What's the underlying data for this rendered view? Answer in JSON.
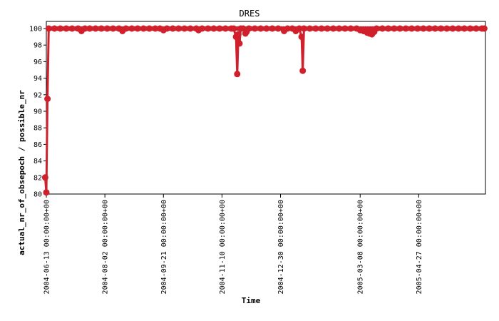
{
  "chart_data": {
    "type": "line",
    "title": "DRES",
    "xlabel": "Time",
    "ylabel": "actual_nr_of_obsepoch / possible_nr",
    "ylim": [
      80,
      100
    ],
    "xlim": [
      "2004-06-13",
      "2005-06-23"
    ],
    "y_ticks": [
      80,
      82,
      84,
      86,
      88,
      90,
      92,
      94,
      96,
      98,
      100
    ],
    "x_ticks": [
      "2004-06-13 00:00:00+00",
      "2004-08-02 00:00:00+00",
      "2004-09-21 00:00:00+00",
      "2004-11-10 00:00:00+00",
      "2004-12-30 00:00:00+00",
      "2005-03-08 00:00:00+00",
      "2005-04-27 00:00:00+00"
    ],
    "grid": false,
    "legend": false,
    "color": "#d0202c",
    "series": [
      {
        "points": [
          [
            "2004-06-12",
            82.0
          ],
          [
            "2004-06-13",
            80.2
          ],
          [
            "2004-06-14",
            91.5
          ],
          [
            "2004-06-15",
            100
          ],
          [
            "2004-06-20",
            100
          ],
          [
            "2004-06-25",
            100
          ],
          [
            "2004-06-30",
            100
          ],
          [
            "2004-07-05",
            100
          ],
          [
            "2004-07-10",
            100
          ],
          [
            "2004-07-13",
            99.7
          ],
          [
            "2004-07-16",
            100
          ],
          [
            "2004-07-20",
            100
          ],
          [
            "2004-07-25",
            100
          ],
          [
            "2004-07-30",
            100
          ],
          [
            "2004-08-04",
            100
          ],
          [
            "2004-08-09",
            100
          ],
          [
            "2004-08-14",
            100
          ],
          [
            "2004-08-17",
            99.7
          ],
          [
            "2004-08-20",
            100
          ],
          [
            "2004-08-25",
            100
          ],
          [
            "2004-08-30",
            100
          ],
          [
            "2004-09-04",
            100
          ],
          [
            "2004-09-09",
            100
          ],
          [
            "2004-09-14",
            100
          ],
          [
            "2004-09-18",
            100
          ],
          [
            "2004-09-21",
            99.8
          ],
          [
            "2004-09-24",
            100
          ],
          [
            "2004-09-29",
            100
          ],
          [
            "2004-10-04",
            100
          ],
          [
            "2004-10-09",
            100
          ],
          [
            "2004-10-14",
            100
          ],
          [
            "2004-10-19",
            100
          ],
          [
            "2004-10-21",
            99.8
          ],
          [
            "2004-10-24",
            100
          ],
          [
            "2004-10-29",
            100
          ],
          [
            "2004-11-03",
            100
          ],
          [
            "2004-11-08",
            100
          ],
          [
            "2004-11-13",
            100
          ],
          [
            "2004-11-18",
            100
          ],
          [
            "2004-11-20",
            100
          ],
          [
            "2004-11-22",
            99.0
          ],
          [
            "2004-11-23",
            94.5
          ],
          [
            "2004-11-24",
            99.3
          ],
          [
            "2004-11-25",
            98.2
          ],
          [
            "2004-11-26",
            100
          ],
          [
            "2004-11-28",
            100
          ],
          [
            "2004-11-30",
            99.4
          ],
          [
            "2004-12-01",
            99.6
          ],
          [
            "2004-12-03",
            100
          ],
          [
            "2004-12-08",
            100
          ],
          [
            "2004-12-13",
            100
          ],
          [
            "2004-12-18",
            100
          ],
          [
            "2004-12-23",
            100
          ],
          [
            "2004-12-28",
            100
          ],
          [
            "2005-01-02",
            99.7
          ],
          [
            "2005-01-05",
            100
          ],
          [
            "2005-01-09",
            100
          ],
          [
            "2005-01-12",
            99.7
          ],
          [
            "2005-01-15",
            100
          ],
          [
            "2005-01-17",
            99.0
          ],
          [
            "2005-01-18",
            94.9
          ],
          [
            "2005-01-19",
            100
          ],
          [
            "2005-01-24",
            100
          ],
          [
            "2005-01-29",
            100
          ],
          [
            "2005-02-03",
            100
          ],
          [
            "2005-02-08",
            100
          ],
          [
            "2005-02-13",
            100
          ],
          [
            "2005-02-18",
            100
          ],
          [
            "2005-02-23",
            100
          ],
          [
            "2005-02-28",
            100
          ],
          [
            "2005-03-05",
            100
          ],
          [
            "2005-03-08",
            99.8
          ],
          [
            "2005-03-11",
            99.7
          ],
          [
            "2005-03-14",
            99.5
          ],
          [
            "2005-03-16",
            99.4
          ],
          [
            "2005-03-18",
            99.3
          ],
          [
            "2005-03-20",
            99.6
          ],
          [
            "2005-03-22",
            100
          ],
          [
            "2005-03-27",
            100
          ],
          [
            "2005-04-01",
            100
          ],
          [
            "2005-04-06",
            100
          ],
          [
            "2005-04-11",
            100
          ],
          [
            "2005-04-16",
            100
          ],
          [
            "2005-04-21",
            100
          ],
          [
            "2005-04-26",
            100
          ],
          [
            "2005-05-01",
            100
          ],
          [
            "2005-05-06",
            100
          ],
          [
            "2005-05-11",
            100
          ],
          [
            "2005-05-16",
            100
          ],
          [
            "2005-05-21",
            100
          ],
          [
            "2005-05-26",
            100
          ],
          [
            "2005-05-31",
            100
          ],
          [
            "2005-06-05",
            100
          ],
          [
            "2005-06-10",
            100
          ],
          [
            "2005-06-15",
            100
          ],
          [
            "2005-06-20",
            100
          ],
          [
            "2005-06-22",
            100
          ]
        ]
      }
    ]
  }
}
